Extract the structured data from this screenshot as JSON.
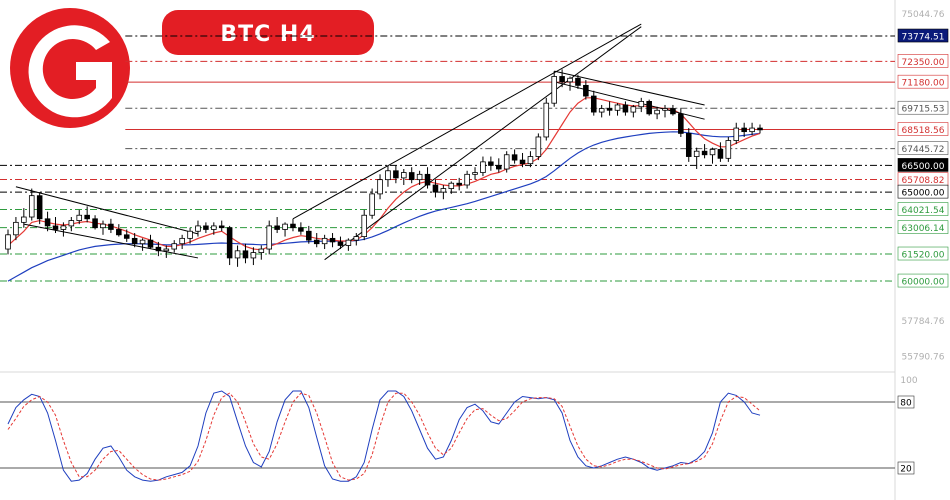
{
  "title": "BTC  H4",
  "colors": {
    "brand_red": "#e31e24",
    "resistance": "#d32f2f",
    "support": "#2e9b3e",
    "neutral": "#000000",
    "blue_ma": "#1f3fbf",
    "red_ma": "#e53935",
    "bull_candle": "#ffffff",
    "bear_candle": "#000000",
    "grid": "#d8d8d8",
    "faded_text": "#b0b0b0"
  },
  "logo": {
    "icon": "brand-logo-G-icon"
  },
  "chart_data": [
    {
      "type": "candlestick",
      "title": "BTC  H4",
      "ylim": [
        55000,
        75800
      ],
      "price_axis_ticks": [
        {
          "value": 75044.76,
          "text": "75044.76",
          "style": "faded"
        },
        {
          "value": 57784.76,
          "text": "57784.76",
          "style": "faded"
        },
        {
          "value": 55790.76,
          "text": "55790.76",
          "style": "faded"
        }
      ],
      "levels": [
        {
          "value": 73774.51,
          "text": "73774.51",
          "badge_color": "#0a1a7a",
          "text_color": "#ffffff",
          "line_color": "#000000",
          "line_style": "dashdot",
          "x_start": 0.14
        },
        {
          "value": 72350.0,
          "text": "72350.00",
          "badge_color": "#ffffff",
          "text_color": "#d32f2f",
          "line_color": "#d32f2f",
          "line_style": "dashdot",
          "x_start": 0.14
        },
        {
          "value": 71180.0,
          "text": "71180.00",
          "badge_color": "#ffffff",
          "text_color": "#d32f2f",
          "line_color": "#d32f2f",
          "line_style": "solid",
          "x_start": 0.14
        },
        {
          "value": 69715.53,
          "text": "69715.53",
          "badge_color": "#ffffff",
          "text_color": "#555555",
          "line_color": "#555555",
          "line_style": "dashdot",
          "x_start": 0.14
        },
        {
          "value": 68518.56,
          "text": "68518.56",
          "badge_color": "#ffffff",
          "text_color": "#d32f2f",
          "line_color": "#d32f2f",
          "line_style": "solid",
          "x_start": 0.14
        },
        {
          "value": 67445.72,
          "text": "67445.72",
          "badge_color": "#ffffff",
          "text_color": "#555555",
          "line_color": "#555555",
          "line_style": "dashdot",
          "x_start": 0.14
        },
        {
          "value": 66500.0,
          "text": "66500.00",
          "badge_color": "#000000",
          "text_color": "#ffffff",
          "line_color": "#000000",
          "line_style": "dashdot",
          "x_start": 0.0
        },
        {
          "value": 65708.82,
          "text": "65708.82",
          "badge_color": "#ffffff",
          "text_color": "#d32f2f",
          "line_color": "#d32f2f",
          "line_style": "dashdot",
          "x_start": 0.0
        },
        {
          "value": 65000.0,
          "text": "65000.00",
          "badge_color": "#ffffff",
          "text_color": "#000000",
          "line_color": "#000000",
          "line_style": "dashdot",
          "x_start": 0.0
        },
        {
          "value": 64021.54,
          "text": "64021.54",
          "badge_color": "#ffffff",
          "text_color": "#2e9b3e",
          "line_color": "#2e9b3e",
          "line_style": "dashdot",
          "x_start": 0.0
        },
        {
          "value": 63006.14,
          "text": "63006.14",
          "badge_color": "#ffffff",
          "text_color": "#2e9b3e",
          "line_color": "#2e9b3e",
          "line_style": "dashdot",
          "x_start": 0.0
        },
        {
          "value": 61520.0,
          "text": "61520.00",
          "badge_color": "#ffffff",
          "text_color": "#2e9b3e",
          "line_color": "#2e9b3e",
          "line_style": "dashdot",
          "x_start": 0.0
        },
        {
          "value": 60000.0,
          "text": "60000.00",
          "badge_color": "#ffffff",
          "text_color": "#2e9b3e",
          "line_color": "#2e9b3e",
          "line_style": "dashdot",
          "x_start": 0.0
        }
      ],
      "candles": [
        [
          61800,
          62900,
          61500,
          62600
        ],
        [
          62600,
          63600,
          62300,
          63300
        ],
        [
          63300,
          64100,
          63000,
          63600
        ],
        [
          63600,
          65200,
          63400,
          64800
        ],
        [
          64800,
          65000,
          63200,
          63500
        ],
        [
          63500,
          63900,
          62800,
          63100
        ],
        [
          63100,
          63600,
          62700,
          62900
        ],
        [
          62900,
          63300,
          62500,
          63100
        ],
        [
          63100,
          63600,
          62800,
          63400
        ],
        [
          63400,
          64000,
          63200,
          63700
        ],
        [
          63700,
          64200,
          63300,
          63500
        ],
        [
          63500,
          63700,
          62900,
          63000
        ],
        [
          63000,
          63400,
          62600,
          63200
        ],
        [
          63200,
          63500,
          62700,
          62900
        ],
        [
          62900,
          63200,
          62500,
          62600
        ],
        [
          62600,
          62900,
          62200,
          62400
        ],
        [
          62400,
          62700,
          61900,
          62100
        ],
        [
          62100,
          62400,
          61700,
          62300
        ],
        [
          62300,
          62600,
          61800,
          61900
        ],
        [
          61900,
          62200,
          61400,
          61700
        ],
        [
          61700,
          62000,
          61300,
          61800
        ],
        [
          61800,
          62300,
          61600,
          62100
        ],
        [
          62100,
          62600,
          61800,
          62400
        ],
        [
          62400,
          63000,
          62100,
          62800
        ],
        [
          62800,
          63400,
          62500,
          63100
        ],
        [
          63100,
          63300,
          62700,
          62900
        ],
        [
          62900,
          63300,
          62600,
          63100
        ],
        [
          63100,
          63400,
          62800,
          63000
        ],
        [
          63000,
          63100,
          60900,
          61300
        ],
        [
          61300,
          62000,
          60800,
          61700
        ],
        [
          61700,
          62100,
          61000,
          61300
        ],
        [
          61300,
          61900,
          60900,
          61600
        ],
        [
          61600,
          62000,
          61200,
          61800
        ],
        [
          61800,
          63400,
          61500,
          63100
        ],
        [
          63100,
          63600,
          62700,
          62900
        ],
        [
          62900,
          63300,
          62500,
          63200
        ],
        [
          63200,
          63500,
          62800,
          63000
        ],
        [
          63000,
          63300,
          62600,
          62800
        ],
        [
          62800,
          63100,
          62100,
          62300
        ],
        [
          62300,
          62700,
          61900,
          62100
        ],
        [
          62100,
          62600,
          61800,
          62400
        ],
        [
          62400,
          62700,
          61900,
          62200
        ],
        [
          62200,
          62500,
          61800,
          62000
        ],
        [
          62000,
          62400,
          61700,
          62300
        ],
        [
          62300,
          62700,
          62000,
          62500
        ],
        [
          62500,
          64000,
          62300,
          63700
        ],
        [
          63700,
          65200,
          63500,
          64900
        ],
        [
          64900,
          66000,
          64600,
          65700
        ],
        [
          65700,
          66500,
          65300,
          66200
        ],
        [
          66200,
          66500,
          65500,
          65800
        ],
        [
          65800,
          66300,
          65400,
          66100
        ],
        [
          66100,
          66400,
          65500,
          65700
        ],
        [
          65700,
          66200,
          65400,
          66000
        ],
        [
          66000,
          66400,
          65200,
          65400
        ],
        [
          65400,
          65700,
          64700,
          65000
        ],
        [
          65000,
          65400,
          64600,
          65200
        ],
        [
          65200,
          65600,
          64900,
          65500
        ],
        [
          65500,
          65800,
          65100,
          65400
        ],
        [
          65400,
          66200,
          65200,
          66000
        ],
        [
          66000,
          66400,
          65700,
          66100
        ],
        [
          66100,
          67000,
          65900,
          66700
        ],
        [
          66700,
          67000,
          66200,
          66500
        ],
        [
          66500,
          66900,
          66100,
          66300
        ],
        [
          66300,
          67300,
          66100,
          67100
        ],
        [
          67100,
          67400,
          66600,
          66800
        ],
        [
          66800,
          67200,
          66400,
          66600
        ],
        [
          66600,
          67300,
          66400,
          67000
        ],
        [
          67000,
          68300,
          66800,
          68100
        ],
        [
          68100,
          70300,
          67900,
          70000
        ],
        [
          70000,
          71800,
          69800,
          71500
        ],
        [
          71500,
          71900,
          70900,
          71200
        ],
        [
          71200,
          71500,
          70700,
          71400
        ],
        [
          71400,
          71600,
          70800,
          71000
        ],
        [
          71000,
          71300,
          70200,
          70400
        ],
        [
          70400,
          70700,
          69300,
          69500
        ],
        [
          69500,
          69900,
          69200,
          69700
        ],
        [
          69700,
          70100,
          69300,
          69600
        ],
        [
          69600,
          70000,
          69300,
          69900
        ],
        [
          69900,
          70100,
          69300,
          69500
        ],
        [
          69500,
          69900,
          69200,
          69800
        ],
        [
          69800,
          70300,
          69500,
          70100
        ],
        [
          70100,
          70200,
          69300,
          69400
        ],
        [
          69400,
          69800,
          69100,
          69600
        ],
        [
          69600,
          69900,
          69200,
          69700
        ],
        [
          69700,
          69900,
          69300,
          69400
        ],
        [
          69400,
          69700,
          68100,
          68300
        ],
        [
          68300,
          68600,
          66700,
          67000
        ],
        [
          67000,
          67500,
          66300,
          67300
        ],
        [
          67300,
          67700,
          66900,
          67100
        ],
        [
          67100,
          67500,
          66600,
          67400
        ],
        [
          67400,
          67800,
          66700,
          66900
        ],
        [
          66900,
          68100,
          66700,
          67900
        ],
        [
          67900,
          68900,
          67700,
          68600
        ],
        [
          68600,
          68900,
          68100,
          68400
        ],
        [
          68400,
          68900,
          68200,
          68600
        ],
        [
          68600,
          68800,
          68300,
          68500
        ]
      ],
      "ma_fast": [
        62000,
        62400,
        62800,
        63300,
        63400,
        63300,
        63200,
        63150,
        63200,
        63300,
        63350,
        63250,
        63200,
        63100,
        62950,
        62800,
        62600,
        62450,
        62300,
        62100,
        61950,
        61950,
        62050,
        62200,
        62400,
        62550,
        62700,
        62800,
        62500,
        62200,
        61950,
        61800,
        61750,
        61950,
        62100,
        62300,
        62450,
        62550,
        62500,
        62400,
        62350,
        62300,
        62250,
        62250,
        62300,
        62600,
        63000,
        63500,
        64100,
        64600,
        65000,
        65300,
        65500,
        65600,
        65500,
        65400,
        65350,
        65350,
        65450,
        65600,
        65800,
        66000,
        66100,
        66300,
        66450,
        66550,
        66650,
        66900,
        67400,
        68100,
        68800,
        69500,
        70000,
        70300,
        70300,
        70200,
        70100,
        70000,
        69900,
        69850,
        69850,
        69800,
        69750,
        69700,
        69650,
        69400,
        68900,
        68400,
        68000,
        67750,
        67550,
        67550,
        67750,
        67950,
        68150,
        68300
      ],
      "ma_slow": [
        60000,
        60250,
        60500,
        60750,
        60950,
        61150,
        61300,
        61450,
        61600,
        61750,
        61850,
        61950,
        62000,
        62050,
        62080,
        62100,
        62100,
        62090,
        62080,
        62060,
        62040,
        62030,
        62030,
        62040,
        62060,
        62090,
        62120,
        62140,
        62120,
        62100,
        62080,
        62060,
        62040,
        62060,
        62090,
        62120,
        62160,
        62200,
        62220,
        62230,
        62240,
        62240,
        62240,
        62250,
        62270,
        62350,
        62480,
        62650,
        62850,
        63060,
        63270,
        63460,
        63640,
        63800,
        63930,
        64040,
        64140,
        64240,
        64350,
        64480,
        64620,
        64760,
        64900,
        65040,
        65180,
        65320,
        65460,
        65640,
        65880,
        66200,
        66550,
        66900,
        67200,
        67450,
        67650,
        67800,
        67920,
        68020,
        68100,
        68170,
        68240,
        68300,
        68340,
        68370,
        68390,
        68380,
        68330,
        68260,
        68190,
        68140,
        68110,
        68110,
        68140,
        68190,
        68250,
        68300
      ],
      "trendlines": [
        {
          "i1": 1,
          "p1": 65300,
          "i2": 24,
          "p2": 62650,
          "style": "solid"
        },
        {
          "i1": 2,
          "p1": 63200,
          "i2": 24,
          "p2": 61300,
          "style": "solid"
        },
        {
          "i1": 40,
          "p1": 61200,
          "i2": 80,
          "p2": 74300,
          "style": "solid"
        },
        {
          "i1": 36,
          "p1": 63500,
          "i2": 80,
          "p2": 74450,
          "style": "solid"
        },
        {
          "i1": 69,
          "p1": 71800,
          "i2": 88,
          "p2": 69900,
          "style": "solid"
        },
        {
          "i1": 69,
          "p1": 71200,
          "i2": 88,
          "p2": 69100,
          "style": "solid"
        }
      ],
      "stoch": {
        "ylim": [
          0,
          100
        ],
        "levels": [
          {
            "value": 80,
            "text": "80"
          },
          {
            "value": 20,
            "text": "20"
          }
        ],
        "top_label": "100",
        "k": [
          60,
          75,
          82,
          87,
          85,
          70,
          45,
          18,
          8,
          9,
          15,
          28,
          38,
          40,
          30,
          18,
          12,
          9,
          8,
          9,
          12,
          14,
          16,
          22,
          40,
          70,
          88,
          90,
          85,
          62,
          40,
          25,
          21,
          35,
          62,
          82,
          90,
          90,
          75,
          48,
          22,
          10,
          8,
          8,
          12,
          25,
          55,
          82,
          90,
          90,
          85,
          72,
          55,
          38,
          28,
          30,
          45,
          64,
          75,
          78,
          72,
          62,
          60,
          70,
          80,
          85,
          84,
          83,
          84,
          82,
          70,
          45,
          30,
          22,
          20,
          22,
          25,
          28,
          30,
          28,
          25,
          20,
          18,
          20,
          22,
          25,
          24,
          28,
          35,
          52,
          80,
          88,
          86,
          80,
          70,
          68
        ],
        "d": [
          55,
          65,
          76,
          82,
          85,
          80,
          68,
          45,
          25,
          12,
          12,
          18,
          28,
          35,
          36,
          28,
          20,
          14,
          10,
          9,
          10,
          12,
          14,
          17,
          26,
          45,
          68,
          84,
          88,
          80,
          62,
          42,
          30,
          28,
          42,
          62,
          80,
          88,
          86,
          70,
          48,
          25,
          12,
          9,
          10,
          15,
          32,
          58,
          80,
          88,
          88,
          80,
          68,
          52,
          38,
          32,
          38,
          52,
          65,
          73,
          74,
          68,
          63,
          65,
          72,
          80,
          83,
          84,
          84,
          83,
          76,
          58,
          40,
          28,
          22,
          21,
          23,
          26,
          28,
          28,
          26,
          23,
          20,
          19,
          21,
          23,
          24,
          26,
          30,
          42,
          63,
          80,
          85,
          84,
          78,
          72
        ]
      }
    }
  ]
}
